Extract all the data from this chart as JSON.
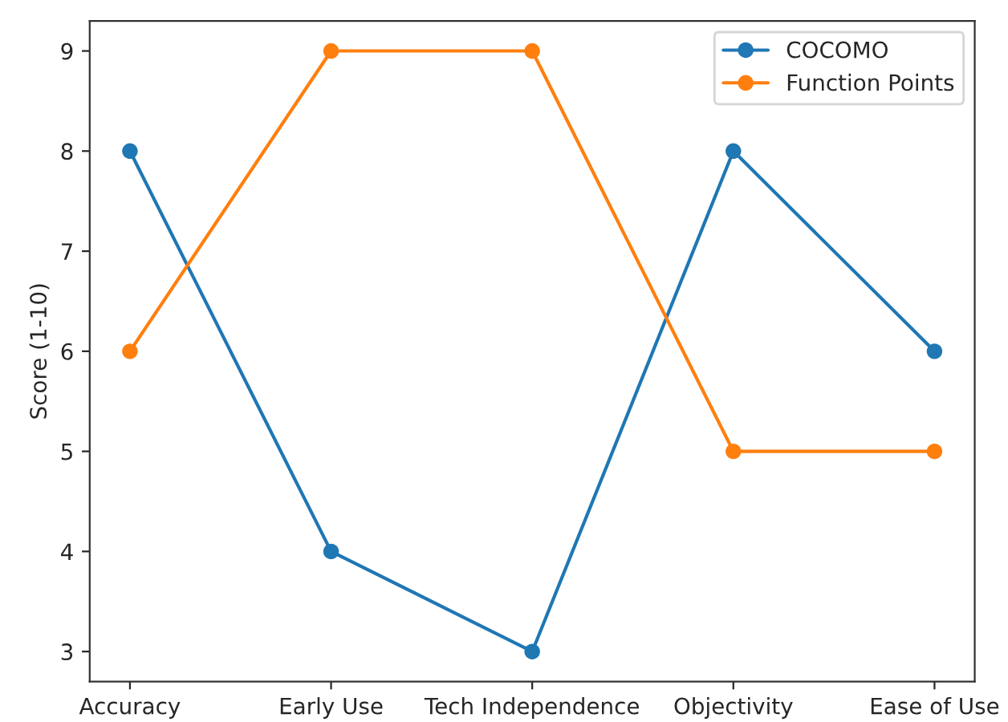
{
  "chart_data": {
    "type": "line",
    "ylabel": "Score (1-10)",
    "categories": [
      "Accuracy",
      "Early Use",
      "Tech Independence",
      "Objectivity",
      "Ease of Use"
    ],
    "series": [
      {
        "name": "COCOMO",
        "color": "#1f77b4",
        "values": [
          8,
          4,
          3,
          8,
          6
        ]
      },
      {
        "name": "Function Points",
        "color": "#ff7f0e",
        "values": [
          6,
          9,
          9,
          5,
          5
        ]
      }
    ],
    "ylim": [
      2.7,
      9.3
    ],
    "yticks": [
      3,
      4,
      5,
      6,
      7,
      8,
      9
    ],
    "legend": "top right",
    "marker": "circle",
    "line_style": "solid",
    "grid": false
  }
}
